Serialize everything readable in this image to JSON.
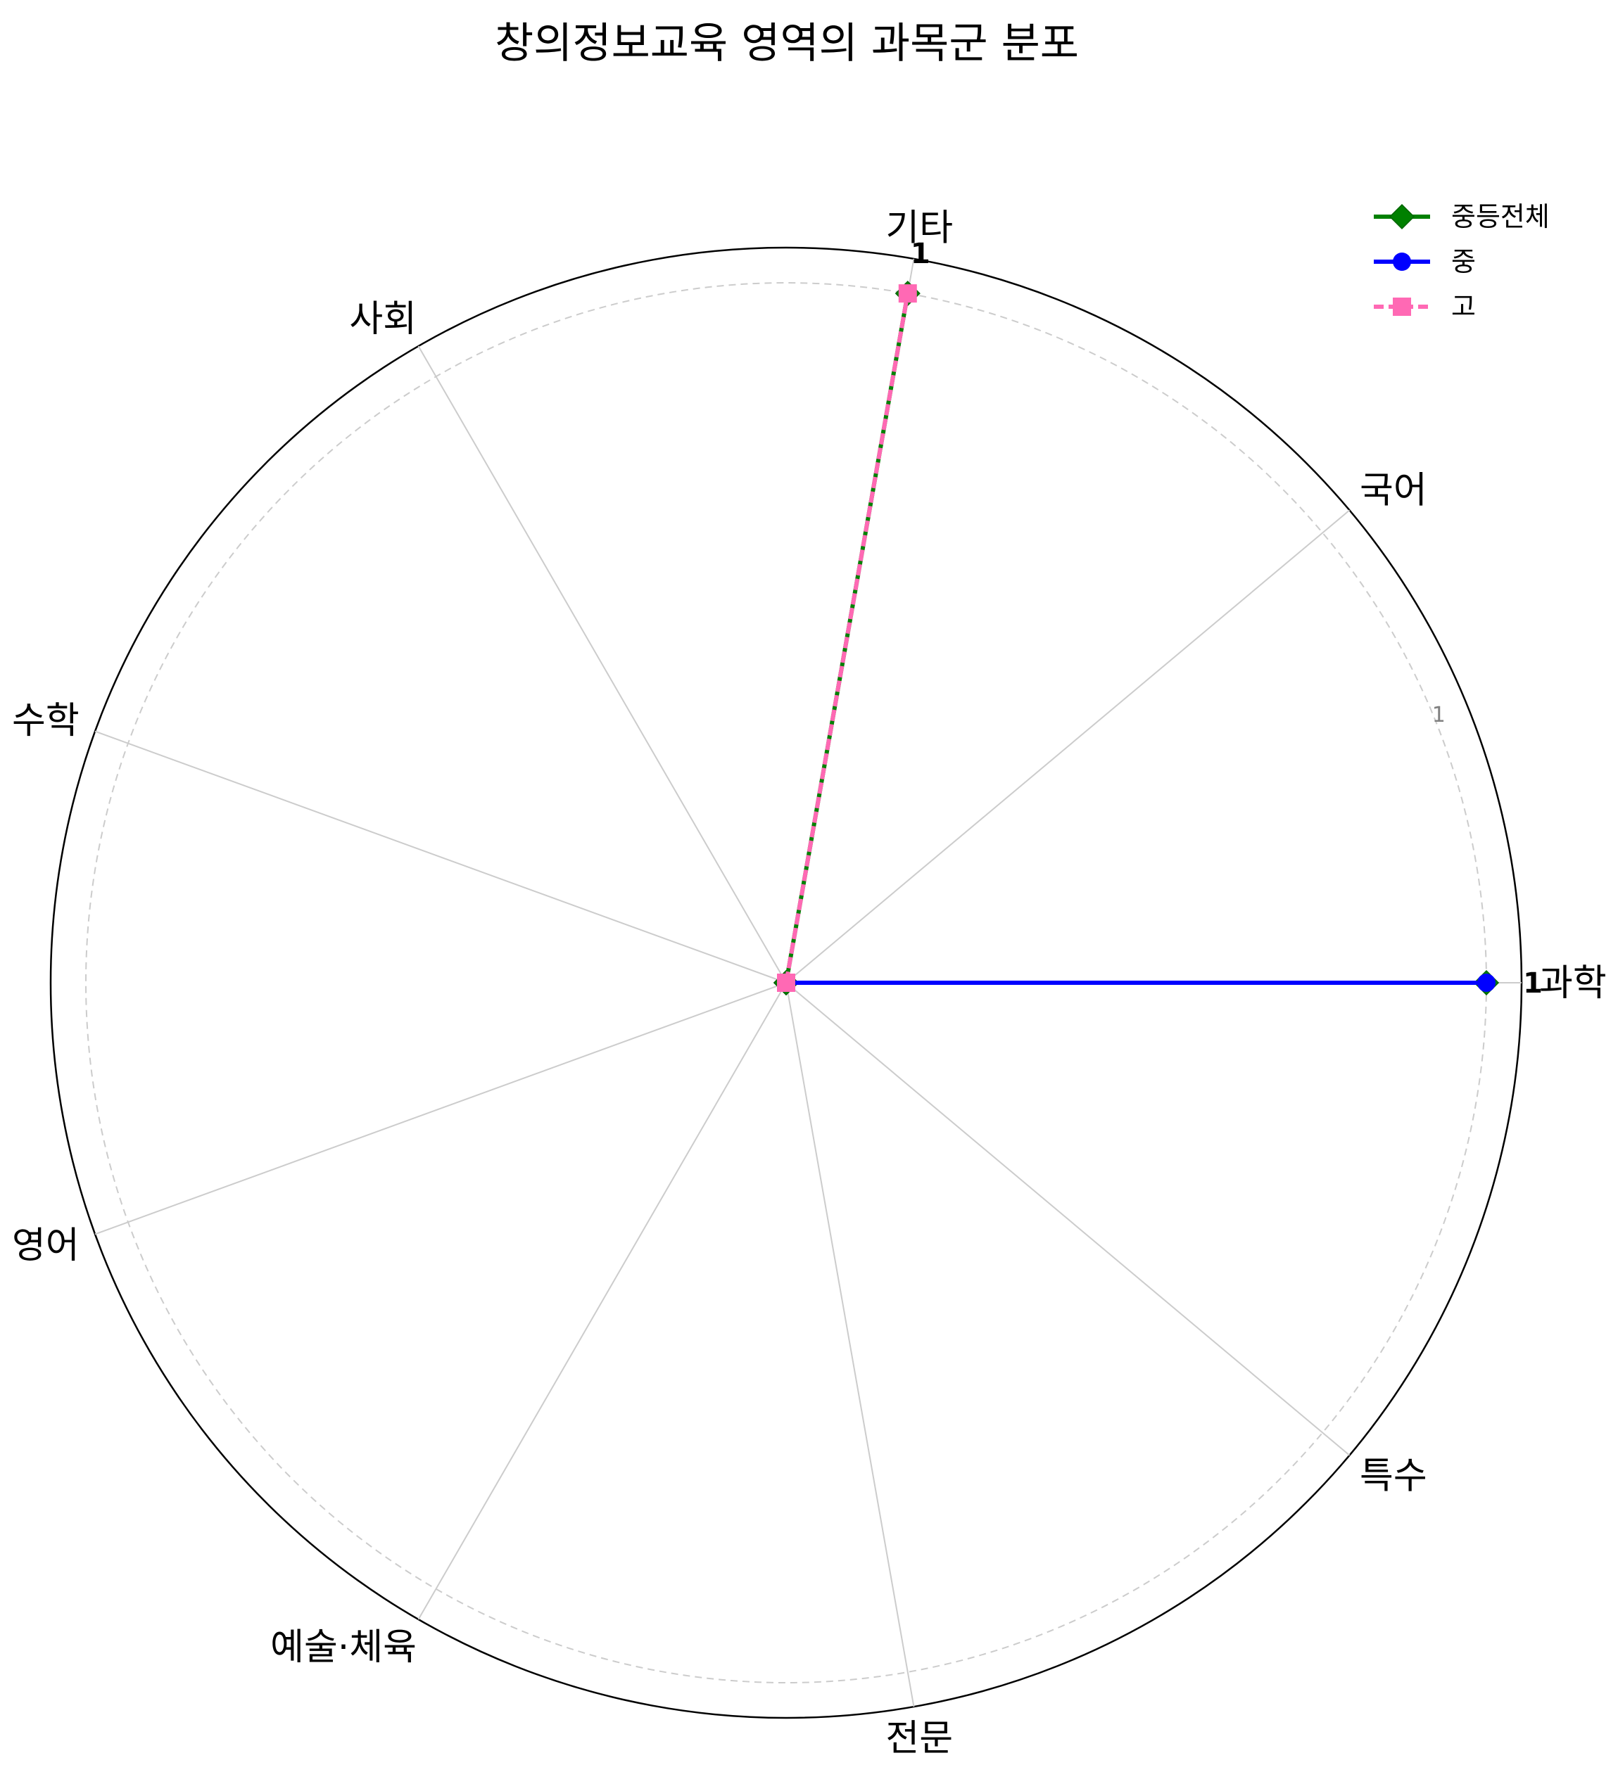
{
  "chart_data": {
    "type": "radar",
    "title": "창의정보교육 영역의 과목군 분포",
    "categories": [
      "과학",
      "국어",
      "기타",
      "사회",
      "수학",
      "영어",
      "예술·체육",
      "전문",
      "특수"
    ],
    "rmax": 1,
    "rticks": [
      1
    ],
    "rtick_labels": [
      "1"
    ],
    "grid": true,
    "legend_position": "top-right",
    "series": [
      {
        "name": "중등전체",
        "values": [
          1,
          0,
          1,
          0,
          0,
          0,
          0,
          0,
          0
        ],
        "color": "#008000",
        "marker": "diamond",
        "line_style": "solid"
      },
      {
        "name": "중",
        "values": [
          1,
          0,
          0,
          0,
          0,
          0,
          0,
          0,
          0
        ],
        "color": "#0000ff",
        "marker": "circle",
        "line_style": "solid"
      },
      {
        "name": "고",
        "values": [
          0,
          0,
          1,
          0,
          0,
          0,
          0,
          0,
          0
        ],
        "color": "#ff69b4",
        "marker": "square",
        "line_style": "dashed"
      }
    ],
    "annotations": [
      {
        "category": "과학",
        "text": "1"
      },
      {
        "category": "기타",
        "text": "1"
      }
    ]
  }
}
